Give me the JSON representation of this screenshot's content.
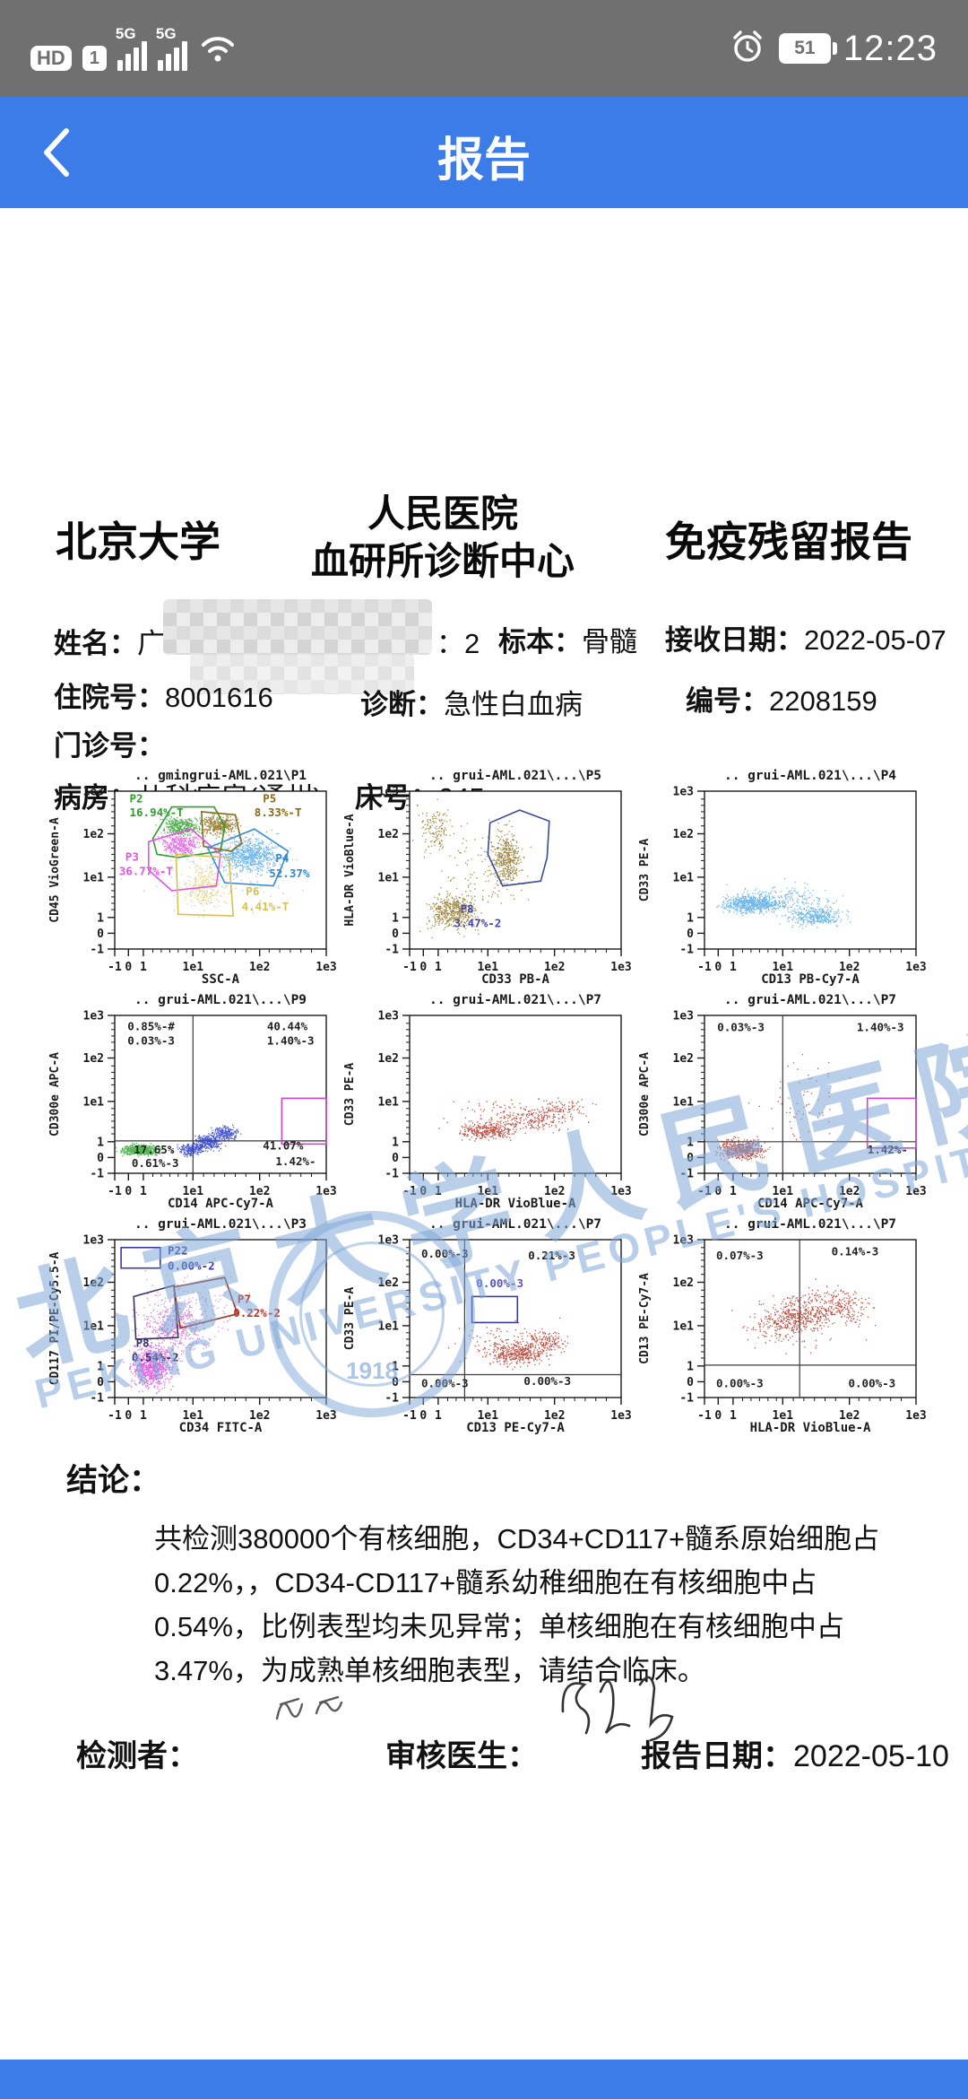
{
  "status_bar": {
    "hd": "HD",
    "sim": "1",
    "net_a": "5G",
    "net_b": "5G",
    "battery": "51",
    "time": "12:23"
  },
  "header": {
    "title": "报告"
  },
  "doc": {
    "header": {
      "left": "北京大学",
      "center_top": "人民医院",
      "center_bottom": "血研所诊断中心",
      "right": "免疫残留报告"
    },
    "info": {
      "name_label": "姓名：",
      "name_partial": "广",
      "age_text": "：2",
      "specimen_label": "标本：",
      "specimen": "骨髓",
      "recv_label": "接收日期：",
      "recv_date": "2022-05-07",
      "inpatient_label": "住院号：",
      "inpatient_no": "8001616",
      "diag_label": "诊断：",
      "diagnosis": "急性白血病",
      "no_label": "编号：",
      "report_no": "2208159",
      "outpatient_label": "门诊号：",
      "ward_label": "病房：",
      "ward": "儿科病房(通州)",
      "bed_label": "床号：",
      "bed": "045"
    },
    "conclusion_label": "结论：",
    "conclusion_text": "共检测380000个有核细胞，CD34+CD117+髓系原始细胞占0.22%，，CD34-CD117+髓系幼稚细胞在有核细胞中占0.54%，比例表型均未见异常；单核细胞在有核细胞中占3.47%，为成熟单核细胞表型，请结合临床。",
    "sign": {
      "tester_label": "检测者：",
      "reviewer_label": "审核医生：",
      "date_label": "报告日期：",
      "date": "2022-05-10"
    }
  },
  "watermark": {
    "cn": "北京大学人民医院",
    "en": "PEKING UNIVERSITY PEOPLE'S HOSPITAL",
    "year": "1918"
  },
  "chart_axes": {
    "xticks": [
      [
        "-1",
        0
      ],
      [
        "0",
        0.065
      ],
      [
        "1",
        0.135
      ],
      [
        "1e1",
        0.37
      ],
      [
        "1e2",
        0.685
      ],
      [
        "1e3",
        1
      ]
    ],
    "yticks": [
      [
        "1e3",
        0
      ],
      [
        "1e2",
        0.27
      ],
      [
        "1e1",
        0.545
      ],
      [
        "1",
        0.8
      ],
      [
        "0",
        0.9
      ],
      [
        "-1",
        1
      ]
    ],
    "xminor": [
      0.18,
      0.22,
      0.26,
      0.3,
      0.34,
      0.42,
      0.47,
      0.52,
      0.57,
      0.62,
      0.73,
      0.78,
      0.83,
      0.88,
      0.93
    ],
    "yminor": [
      0.05,
      0.09,
      0.13,
      0.17,
      0.22,
      0.32,
      0.36,
      0.4,
      0.44,
      0.49,
      0.59,
      0.63,
      0.67,
      0.71,
      0.75
    ]
  },
  "chart_data": [
    {
      "type": "scatter",
      "title": ".. gmingrui-AML.021\\P1",
      "ylabel": "CD45 VioGreen-A",
      "xlabel": "SSC-A",
      "clusters": [
        [
          "#2f9e2f",
          0.31,
          0.22,
          0.075,
          0.045,
          380
        ],
        [
          "#8a6a16",
          0.49,
          0.21,
          0.065,
          0.05,
          380
        ],
        [
          "#e255e2",
          0.31,
          0.34,
          0.07,
          0.05,
          380
        ],
        [
          "#4fa8e8",
          0.63,
          0.4,
          0.115,
          0.09,
          750
        ],
        [
          "#e3cc66",
          0.42,
          0.6,
          0.075,
          0.12,
          260
        ],
        [
          "#9db8e8",
          0.5,
          0.5,
          0.28,
          0.24,
          130
        ]
      ],
      "gates": [
        {
          "c": "#2f9e2f",
          "pts": [
            [
              0.18,
              0.3
            ],
            [
              0.27,
              0.1
            ],
            [
              0.47,
              0.1
            ],
            [
              0.52,
              0.22
            ],
            [
              0.5,
              0.38
            ],
            [
              0.3,
              0.42
            ],
            [
              0.2,
              0.4
            ]
          ]
        },
        {
          "c": "#8a6a16",
          "pts": [
            [
              0.41,
              0.13
            ],
            [
              0.57,
              0.15
            ],
            [
              0.6,
              0.33
            ],
            [
              0.55,
              0.38
            ],
            [
              0.42,
              0.35
            ]
          ]
        },
        {
          "c": "#e255e2",
          "pts": [
            [
              0.16,
              0.32
            ],
            [
              0.36,
              0.24
            ],
            [
              0.5,
              0.4
            ],
            [
              0.48,
              0.6
            ],
            [
              0.27,
              0.63
            ],
            [
              0.16,
              0.5
            ]
          ]
        },
        {
          "c": "#3a8fd0",
          "pts": [
            [
              0.44,
              0.36
            ],
            [
              0.66,
              0.24
            ],
            [
              0.82,
              0.38
            ],
            [
              0.75,
              0.6
            ],
            [
              0.52,
              0.58
            ]
          ]
        },
        {
          "c": "#d8c050",
          "pts": [
            [
              0.29,
              0.4
            ],
            [
              0.54,
              0.42
            ],
            [
              0.56,
              0.79
            ],
            [
              0.3,
              0.78
            ]
          ]
        }
      ],
      "labels": [
        [
          "P2",
          0.07,
          0.07,
          "#2f9e2f"
        ],
        [
          "16.94%-T",
          0.07,
          0.16,
          "#2f9e2f"
        ],
        [
          "P5",
          0.7,
          0.07,
          "#8a6a16"
        ],
        [
          "8.33%-T",
          0.66,
          0.16,
          "#8a6a16"
        ],
        [
          "P3",
          0.05,
          0.44,
          "#e255e2"
        ],
        [
          "36.77%-T",
          0.02,
          0.53,
          "#e255e2"
        ],
        [
          "P4",
          0.76,
          0.45,
          "#2f88d0"
        ],
        [
          "52.37%",
          0.73,
          0.545,
          "#2f88d0"
        ],
        [
          "P6",
          0.62,
          0.66,
          "#d8c050"
        ],
        [
          "4.41%-T",
          0.6,
          0.755,
          "#d8c050"
        ]
      ]
    },
    {
      "type": "scatter",
      "title": ".. grui-AML.021\\...\\P5",
      "ylabel": "HLA-DR VioBlue-A",
      "xlabel": "CD33 PB-A",
      "clusters": [
        [
          "#8f7320",
          0.2,
          0.76,
          0.09,
          0.09,
          500
        ],
        [
          "#8f7320",
          0.46,
          0.42,
          0.05,
          0.13,
          400
        ],
        [
          "#8f7320",
          0.12,
          0.22,
          0.06,
          0.12,
          140
        ],
        [
          "#8f7320",
          0.35,
          0.52,
          0.17,
          0.24,
          140
        ]
      ],
      "gates": [
        {
          "c": "#384a9a",
          "pts": [
            [
              0.38,
              0.2
            ],
            [
              0.52,
              0.12
            ],
            [
              0.66,
              0.19
            ],
            [
              0.65,
              0.42
            ],
            [
              0.62,
              0.57
            ],
            [
              0.44,
              0.6
            ],
            [
              0.37,
              0.4
            ]
          ]
        }
      ],
      "labels": [
        [
          "P8",
          0.24,
          0.77,
          "#4848b0"
        ],
        [
          "3.47%-2",
          0.21,
          0.86,
          "#4848b0"
        ]
      ]
    },
    {
      "type": "scatter",
      "title": ".. grui-AML.021\\...\\P4",
      "ylabel": "CD33 PE-A",
      "xlabel": "CD13 PB-Cy7-A",
      "clusters": [
        [
          "#58abe4",
          0.22,
          0.71,
          0.11,
          0.045,
          700
        ],
        [
          "#58abe4",
          0.53,
          0.79,
          0.11,
          0.045,
          400
        ],
        [
          "#58abe4",
          0.38,
          0.68,
          0.19,
          0.075,
          220
        ]
      ],
      "gates": [],
      "labels": []
    },
    {
      "type": "scatter",
      "title": ".. grui-AML.021\\...\\P9",
      "ylabel": "CD300e APC-A",
      "xlabel": "CD14 APC-Cy7-A",
      "quadrant": [
        0.37,
        0.795
      ],
      "clusters": [
        [
          "#2da32d",
          0.115,
          0.85,
          0.07,
          0.028,
          550
        ],
        [
          "#2538c8",
          0.36,
          0.85,
          0.05,
          0.03,
          220
        ],
        [
          "#2538c8",
          0.44,
          0.8,
          0.05,
          0.035,
          300
        ],
        [
          "#2538c8",
          0.52,
          0.745,
          0.05,
          0.035,
          220
        ]
      ],
      "gates": [
        {
          "c": "#cc44cc",
          "rect": [
            0.79,
            0.525,
            0.21,
            0.29
          ]
        }
      ],
      "labels": [
        [
          "0.85%-#",
          0.06,
          0.095,
          "#222222"
        ],
        [
          "0.03%-3",
          0.06,
          0.185,
          "#222222"
        ],
        [
          "40.44%",
          0.72,
          0.095,
          "#222222"
        ],
        [
          "1.40%-3",
          0.72,
          0.185,
          "#222222"
        ],
        [
          "17.65%",
          0.09,
          0.875,
          "#222222"
        ],
        [
          "0.61%-3",
          0.08,
          0.96,
          "#222222"
        ],
        [
          "41.07%",
          0.7,
          0.85,
          "#222222"
        ],
        [
          "1.42%-",
          0.76,
          0.95,
          "#222222"
        ]
      ]
    },
    {
      "type": "scatter",
      "title": ".. grui-AML.021\\...\\P7",
      "ylabel": "CD33 PE-A",
      "xlabel": "HLA-DR VioBlue-A",
      "clusters": [
        [
          "#b23122",
          0.37,
          0.73,
          0.1,
          0.045,
          320
        ],
        [
          "#b23122",
          0.55,
          0.66,
          0.13,
          0.06,
          180
        ],
        [
          "#b23122",
          0.72,
          0.6,
          0.1,
          0.06,
          110
        ],
        [
          "#b23122",
          0.45,
          0.62,
          0.24,
          0.1,
          70
        ]
      ],
      "gates": [],
      "labels": []
    },
    {
      "type": "scatter",
      "title": ".. grui-AML.021\\...\\P7",
      "ylabel": "CD300e APC-A",
      "xlabel": "CD14 APC-Cy7-A",
      "quadrant": [
        0.37,
        0.8
      ],
      "clusters": [
        [
          "#b23122",
          0.17,
          0.845,
          0.085,
          0.05,
          480
        ],
        [
          "#b23122",
          0.45,
          0.55,
          0.2,
          0.2,
          60
        ]
      ],
      "gates": [
        {
          "c": "#cc44cc",
          "rect": [
            0.77,
            0.525,
            0.23,
            0.315
          ]
        }
      ],
      "labels": [
        [
          "0.03%-3",
          0.06,
          0.1,
          "#222222"
        ],
        [
          "1.40%-3",
          0.72,
          0.1,
          "#222222"
        ],
        [
          "1.42%-",
          0.77,
          0.875,
          "#222222"
        ]
      ]
    },
    {
      "type": "scatter",
      "title": ".. grui-AML.021\\...\\P3",
      "ylabel": "CD117 PI/PE-Cy5.5-A",
      "xlabel": "CD34 FITC-A",
      "clusters": [
        [
          "#da3fda",
          0.17,
          0.8,
          0.08,
          0.11,
          750
        ],
        [
          "#d560d5",
          0.28,
          0.55,
          0.13,
          0.14,
          420
        ],
        [
          "#cf7fcf",
          0.35,
          0.45,
          0.21,
          0.19,
          180
        ]
      ],
      "gates": [
        {
          "c": "#3a3aa8",
          "rect": [
            0.03,
            0.05,
            0.185,
            0.13
          ]
        },
        {
          "c": "#333366",
          "pts": [
            [
              0.09,
              0.36
            ],
            [
              0.28,
              0.29
            ],
            [
              0.3,
              0.62
            ],
            [
              0.1,
              0.63
            ]
          ]
        },
        {
          "c": "#993322",
          "pts": [
            [
              0.28,
              0.3
            ],
            [
              0.52,
              0.24
            ],
            [
              0.58,
              0.47
            ],
            [
              0.31,
              0.56
            ]
          ]
        }
      ],
      "labels": [
        [
          "P22",
          0.25,
          0.095,
          "#3a3aa8"
        ],
        [
          "0.00%-2",
          0.25,
          0.19,
          "#3a3aa8"
        ],
        [
          "P7",
          0.58,
          0.4,
          "#bb3322"
        ],
        [
          "0.22%-2",
          0.56,
          0.49,
          "#bb3322"
        ],
        [
          "P8",
          0.1,
          0.68,
          "#333366"
        ],
        [
          "0.54%-2",
          0.08,
          0.77,
          "#333366"
        ]
      ]
    },
    {
      "type": "scatter",
      "title": ".. grui-AML.021\\...\\P7",
      "ylabel": "CD33 PE-A",
      "xlabel": "CD13 PE-Cy7-A",
      "quadrant": [
        0.26,
        0.855
      ],
      "clusters": [
        [
          "#b23122",
          0.5,
          0.72,
          0.12,
          0.055,
          380
        ],
        [
          "#b23122",
          0.62,
          0.65,
          0.1,
          0.06,
          180
        ],
        [
          "#b23122",
          0.44,
          0.62,
          0.2,
          0.11,
          70
        ]
      ],
      "gates": [
        {
          "c": "#3a3aa8",
          "rect": [
            0.295,
            0.36,
            0.215,
            0.165
          ]
        }
      ],
      "labels": [
        [
          "0.00%-3",
          0.055,
          0.115,
          "#222222"
        ],
        [
          "0.21%-3",
          0.56,
          0.125,
          "#222222"
        ],
        [
          "0.00%-3",
          0.315,
          0.3,
          "#5555cc"
        ],
        [
          "0.00%-3",
          0.055,
          0.935,
          "#222222"
        ],
        [
          "0.00%-3",
          0.54,
          0.92,
          "#222222"
        ]
      ]
    },
    {
      "type": "scatter",
      "title": ".. grui-AML.021\\...\\P7",
      "ylabel": "CD13 PE-Cy7-A",
      "xlabel": "HLA-DR VioBlue-A",
      "quadrant": [
        0.45,
        0.795
      ],
      "clusters": [
        [
          "#b23122",
          0.45,
          0.47,
          0.14,
          0.1,
          340
        ],
        [
          "#b23122",
          0.62,
          0.42,
          0.14,
          0.09,
          220
        ],
        [
          "#b23122",
          0.35,
          0.55,
          0.12,
          0.1,
          130
        ],
        [
          "#b23122",
          0.5,
          0.5,
          0.25,
          0.17,
          70
        ]
      ],
      "gates": [],
      "labels": [
        [
          "0.07%-3",
          0.055,
          0.125,
          "#222222"
        ],
        [
          "0.14%-3",
          0.6,
          0.1,
          "#222222"
        ],
        [
          "0.00%-3",
          0.055,
          0.935,
          "#222222"
        ],
        [
          "0.00%-3",
          0.68,
          0.935,
          "#222222"
        ]
      ]
    }
  ],
  "colors": {
    "header_blue": "#3b7ce9",
    "statusbar_gray": "#707070",
    "watermark_blue": "#7da5d7"
  }
}
